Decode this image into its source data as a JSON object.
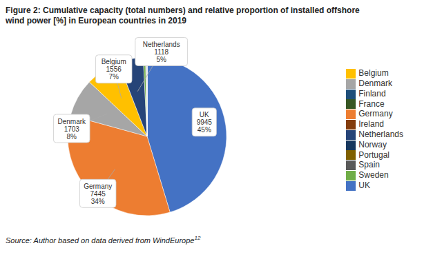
{
  "chart_data": {
    "type": "pie",
    "title": "Figure 2:  Cumulative capacity (total numbers) and relative proportion of installed offshore\nwind power [%] in European countries in 2019",
    "categories": [
      "UK",
      "Germany",
      "Denmark",
      "Belgium",
      "Netherlands",
      "Sweden",
      "Finland",
      "Ireland",
      "Spain",
      "Portugal",
      "Norway",
      "France"
    ],
    "values": [
      9945,
      7445,
      1703,
      1556,
      1118,
      100,
      25,
      25,
      12,
      2,
      2,
      2
    ],
    "colors": [
      "#4472C4",
      "#ED7D31",
      "#A6A6A6",
      "#FFC000",
      "#264478",
      "#70AD47",
      "#1F4E79",
      "#843C0C",
      "#595959",
      "#7F6000",
      "#17375E",
      "#375623"
    ],
    "value_labels": [
      "UK\n9945\n45%",
      "Germany\n7445\n34%",
      "Denmark\n1703\n8%",
      "Belgium\n1556\n7%",
      "Netherlands\n1118\n5%",
      null,
      null,
      null,
      null,
      null,
      null,
      null
    ],
    "data_labels": true,
    "legend": "right",
    "annotations": [
      "Source: Author based on data derived from WindEurope",
      "12"
    ]
  }
}
